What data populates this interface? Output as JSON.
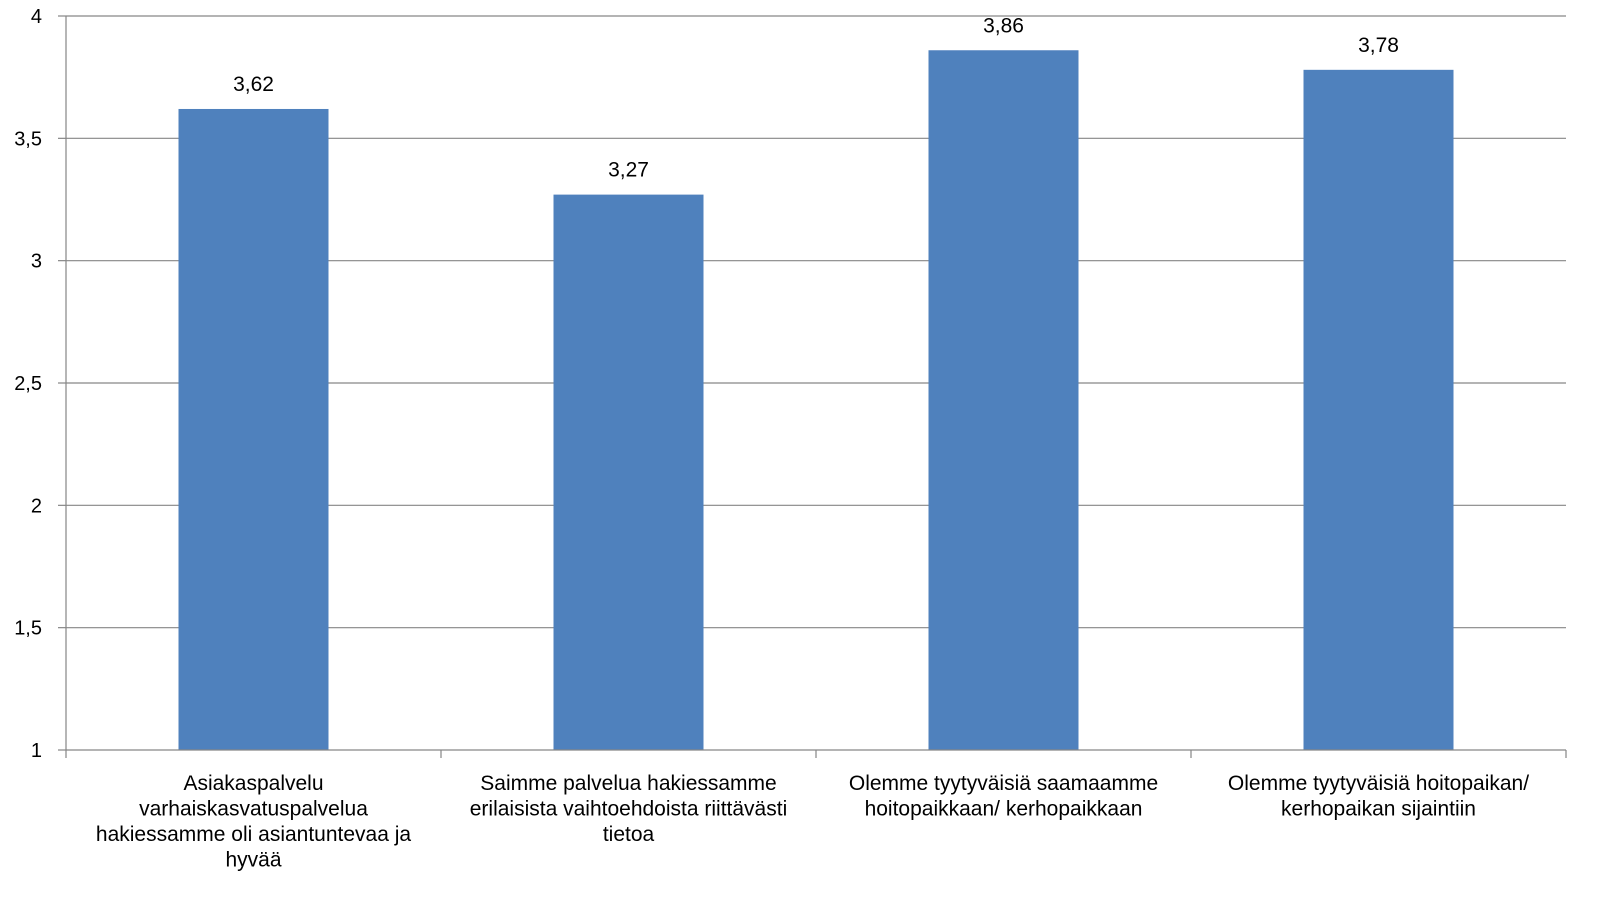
{
  "chart_data": {
    "type": "bar",
    "categories": [
      "Asiakaspalvelu varhaiskasvatuspalvelua hakiessamme oli asiantuntevaa ja hyvää",
      "Saimme palvelua hakiessamme erilaisista vaihtoehdoista riittävästi tietoa",
      "Olemme tyytyväisiä saamaamme hoitopaikkaan/ kerhopaikkaan",
      "Olemme tyytyväisiä hoitopaikan/ kerhopaikan sijaintiin"
    ],
    "category_lines": [
      [
        "Asiakaspalvelu",
        "varhaiskasvatuspalvelua",
        "hakiessamme oli asiantuntevaa ja",
        "hyvää"
      ],
      [
        "Saimme palvelua hakiessamme",
        "erilaisista vaihtoehdoista riittävästi",
        "tietoa"
      ],
      [
        "Olemme tyytyväisiä saamaamme",
        "hoitopaikkaan/ kerhopaikkaan"
      ],
      [
        "Olemme tyytyväisiä hoitopaikan/",
        "kerhopaikan sijaintiin"
      ]
    ],
    "values": [
      3.62,
      3.27,
      3.86,
      3.78
    ],
    "value_labels": [
      "3,62",
      "3,27",
      "3,86",
      "3,78"
    ],
    "ylim": [
      1,
      4
    ],
    "y_ticks": [
      1,
      1.5,
      2,
      2.5,
      3,
      3.5,
      4
    ],
    "y_tick_labels": [
      "1",
      "1,5",
      "2",
      "2,5",
      "3",
      "3,5",
      "4"
    ],
    "grid": true,
    "legend": "none",
    "title": "",
    "xlabel": "",
    "ylabel": "",
    "colors": {
      "bar": "#4F81BD",
      "grid": "#868686",
      "axis": "#868686",
      "text": "#000000"
    }
  }
}
